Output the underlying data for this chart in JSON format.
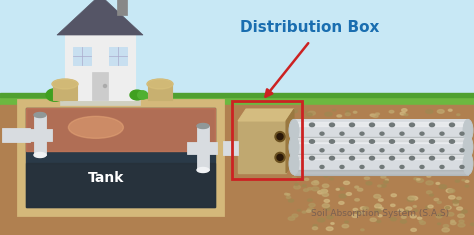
{
  "title": "Distribution Box",
  "subtitle": "Soil Absorption System (S.A.S)",
  "bg_sky": "#c8e8f5",
  "bg_grass": "#6cb840",
  "bg_soil": "#b08050",
  "tank_wall": "#d4b87a",
  "tank_wall_edge": "#b09050",
  "tank_interior": "#2a3a48",
  "tank_scum_top": "#c87858",
  "tank_scum_glow": "#e8a878",
  "tank_water": "#303d4a",
  "dbox_fill": "#c0a870",
  "dbox_edge": "#cc2222",
  "pipe_fill": "#d8dce0",
  "pipe_edge": "#a0a8b0",
  "pipe_highlight": "#f0f2f4",
  "pipe_shadow": "#909898",
  "pipe_holes": "#707878",
  "label_color": "#1a6eb0",
  "arrow_color": "#cc2222",
  "text_white": "#ffffff",
  "text_soil": "#8a7060",
  "house_wall": "#eeeeee",
  "house_wall_edge": "#cccccc",
  "house_roof": "#555566",
  "house_door": "#cccccc",
  "house_window": "#c8dff0",
  "house_chimney": "#888888",
  "riser_fill": "#c8b070",
  "riser_edge": "#a09050",
  "grass_dark": "#50a030",
  "pipe_connection": "#c0c8cc",
  "gravel_colors": [
    "#c0a870",
    "#b09860",
    "#d0b880",
    "#a08850"
  ]
}
